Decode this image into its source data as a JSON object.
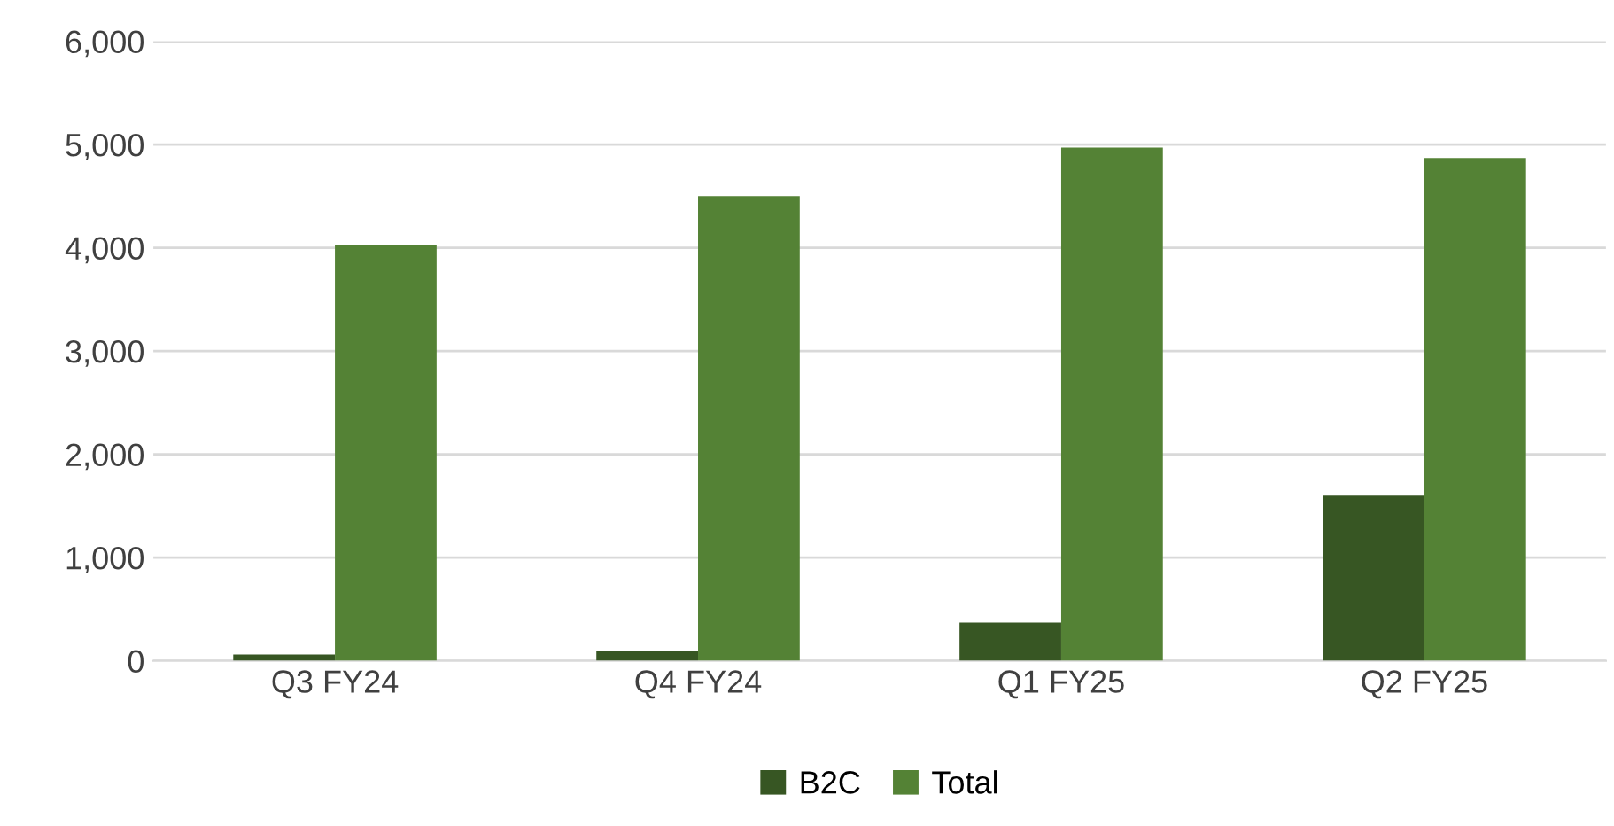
{
  "chart_data": {
    "type": "bar",
    "categories": [
      "Q3 FY24",
      "Q4 FY24",
      "Q1 FY25",
      "Q2 FY25"
    ],
    "series": [
      {
        "name": "B2C",
        "color": "#375623",
        "values": [
          60,
          100,
          370,
          1600
        ]
      },
      {
        "name": "Total",
        "color": "#548235",
        "values": [
          4030,
          4500,
          4970,
          4870
        ]
      }
    ],
    "ylim": [
      0,
      6000
    ],
    "yticks": [
      {
        "value": 0,
        "label": "0"
      },
      {
        "value": 1000,
        "label": "1,000"
      },
      {
        "value": 2000,
        "label": "2,000"
      },
      {
        "value": 3000,
        "label": "3,000"
      },
      {
        "value": 4000,
        "label": "4,000"
      },
      {
        "value": 5000,
        "label": "5,000"
      },
      {
        "value": 6000,
        "label": "6,000"
      }
    ],
    "grid": "y",
    "legend": "bottom"
  }
}
